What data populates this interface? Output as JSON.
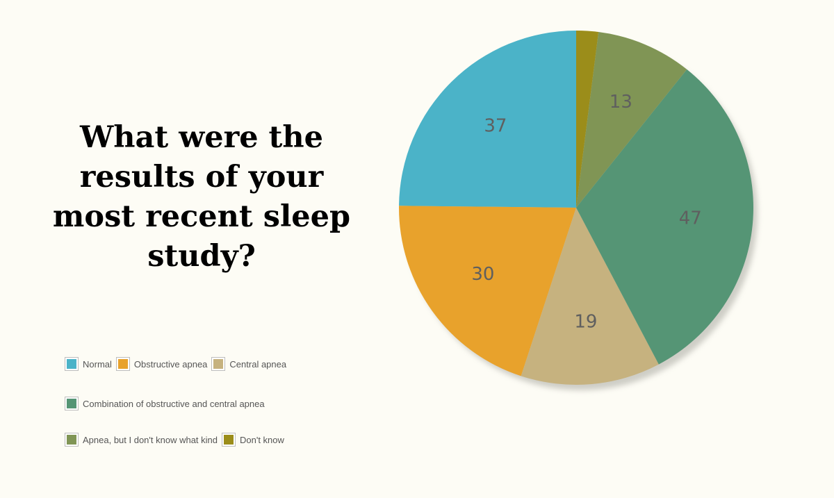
{
  "chart_data": {
    "type": "pie",
    "title": "What were the results of your most recent sleep study?",
    "start_angle_deg": 90,
    "direction": "counterclockwise",
    "slices": [
      {
        "label": "Normal",
        "value": 37,
        "color": "#4bb3c8",
        "show_value": true
      },
      {
        "label": "Obstructive apnea",
        "value": 30,
        "color": "#e8a22c",
        "show_value": true
      },
      {
        "label": "Central apnea",
        "value": 19,
        "color": "#c6b27f",
        "show_value": true
      },
      {
        "label": "Combination of obstructive and central apnea",
        "value": 47,
        "color": "#559575",
        "show_value": true
      },
      {
        "label": "Apnea, but I don't know what kind",
        "value": 13,
        "color": "#809555",
        "show_value": true
      },
      {
        "label": "Don't know",
        "value": 3,
        "color": "#9b8d1a",
        "show_value": false
      }
    ],
    "legend": {
      "placement": "bottom-left",
      "rows": [
        [
          0,
          1,
          2
        ],
        [
          3
        ],
        [
          4,
          5
        ]
      ]
    }
  }
}
